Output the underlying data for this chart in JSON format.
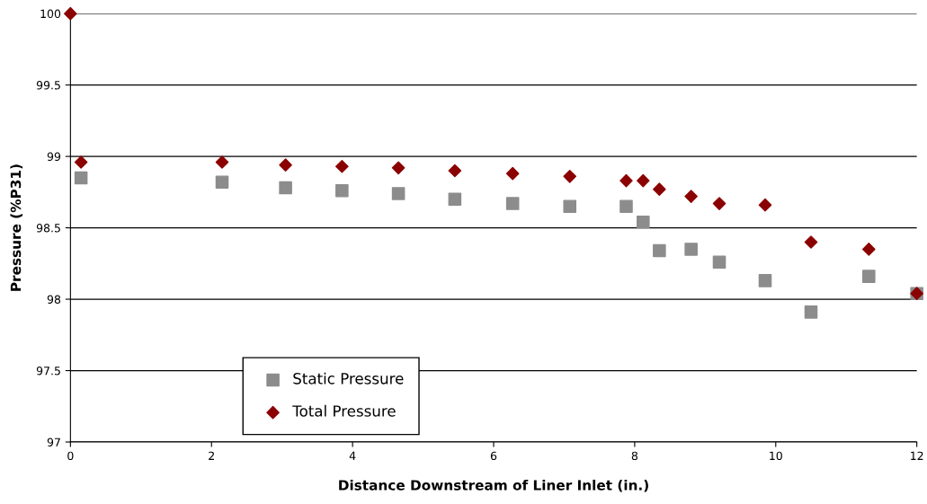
{
  "chart_data": {
    "type": "scatter",
    "xlabel": "Distance Downstream of Liner Inlet (in.)",
    "ylabel": "Pressure (%P31)",
    "xlim": [
      0,
      12
    ],
    "xticks": [
      0,
      2,
      4,
      6,
      8,
      10,
      12
    ],
    "ylim": [
      97,
      100
    ],
    "yticks": [
      97,
      97.5,
      98,
      98.5,
      99,
      99.5,
      100
    ],
    "grid": "y",
    "legend": "bottom left",
    "series": [
      {
        "name": "Static Pressure",
        "color": "#8c8c8c",
        "marker": "square",
        "x": [
          0.15,
          2.15,
          3.05,
          3.85,
          4.65,
          5.45,
          6.27,
          7.08,
          7.88,
          8.12,
          8.35,
          8.8,
          9.2,
          9.85,
          10.5,
          11.32,
          12.0
        ],
        "values": [
          98.85,
          98.82,
          98.78,
          98.76,
          98.74,
          98.7,
          98.67,
          98.65,
          98.65,
          98.54,
          98.34,
          98.35,
          98.26,
          98.13,
          97.91,
          98.16,
          98.04
        ]
      },
      {
        "name": "Total Pressure",
        "color": "#8b0000",
        "marker": "diamond",
        "x": [
          0,
          0.15,
          2.15,
          3.05,
          3.85,
          4.65,
          5.45,
          6.27,
          7.08,
          7.88,
          8.12,
          8.35,
          8.8,
          9.2,
          9.85,
          10.5,
          11.32,
          12.0
        ],
        "values": [
          100,
          98.96,
          98.96,
          98.94,
          98.93,
          98.92,
          98.9,
          98.88,
          98.86,
          98.83,
          98.83,
          98.77,
          98.72,
          98.67,
          98.66,
          98.4,
          98.35,
          98.04
        ]
      }
    ]
  }
}
